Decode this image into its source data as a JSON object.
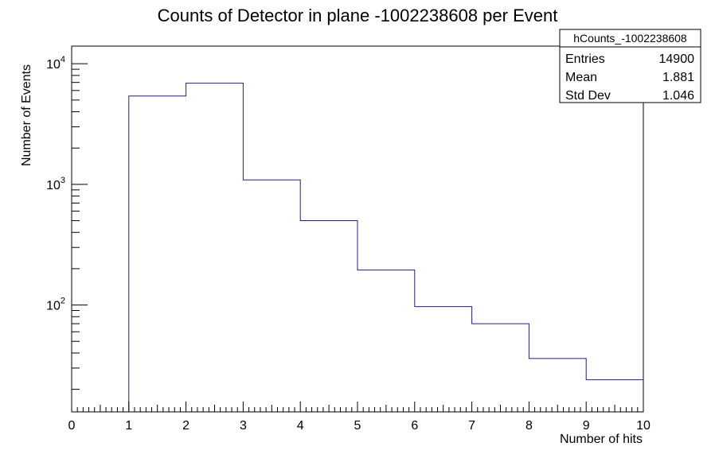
{
  "chart_data": {
    "type": "bar",
    "title": "Counts of Detector in plane -1002238608 per Event",
    "xlabel": "Number of hits",
    "ylabel": "Number of Events",
    "xlim": [
      0,
      10
    ],
    "ylim": [
      13,
      14000
    ],
    "log_y": true,
    "grid": false,
    "x_ticks": [
      "0",
      "1",
      "2",
      "3",
      "4",
      "5",
      "6",
      "7",
      "8",
      "9",
      "10"
    ],
    "y_tick_values": [
      100,
      1000,
      10000
    ],
    "y_ticks": [
      {
        "base": "10",
        "exp": "2"
      },
      {
        "base": "10",
        "exp": "3"
      },
      {
        "base": "10",
        "exp": "4"
      }
    ],
    "bin_edges": [
      0,
      1,
      2,
      3,
      4,
      5,
      6,
      7,
      8,
      9,
      10
    ],
    "values": [
      0,
      5400,
      6900,
      1090,
      500,
      195,
      97,
      70,
      36,
      24
    ],
    "line_color": "#1c1c8c"
  },
  "stats_box": {
    "title": "hCounts_-1002238608",
    "rows": [
      {
        "label": "Entries",
        "value": "14900"
      },
      {
        "label": "Mean",
        "value": "1.881"
      },
      {
        "label": "Std Dev",
        "value": "1.046"
      }
    ]
  }
}
